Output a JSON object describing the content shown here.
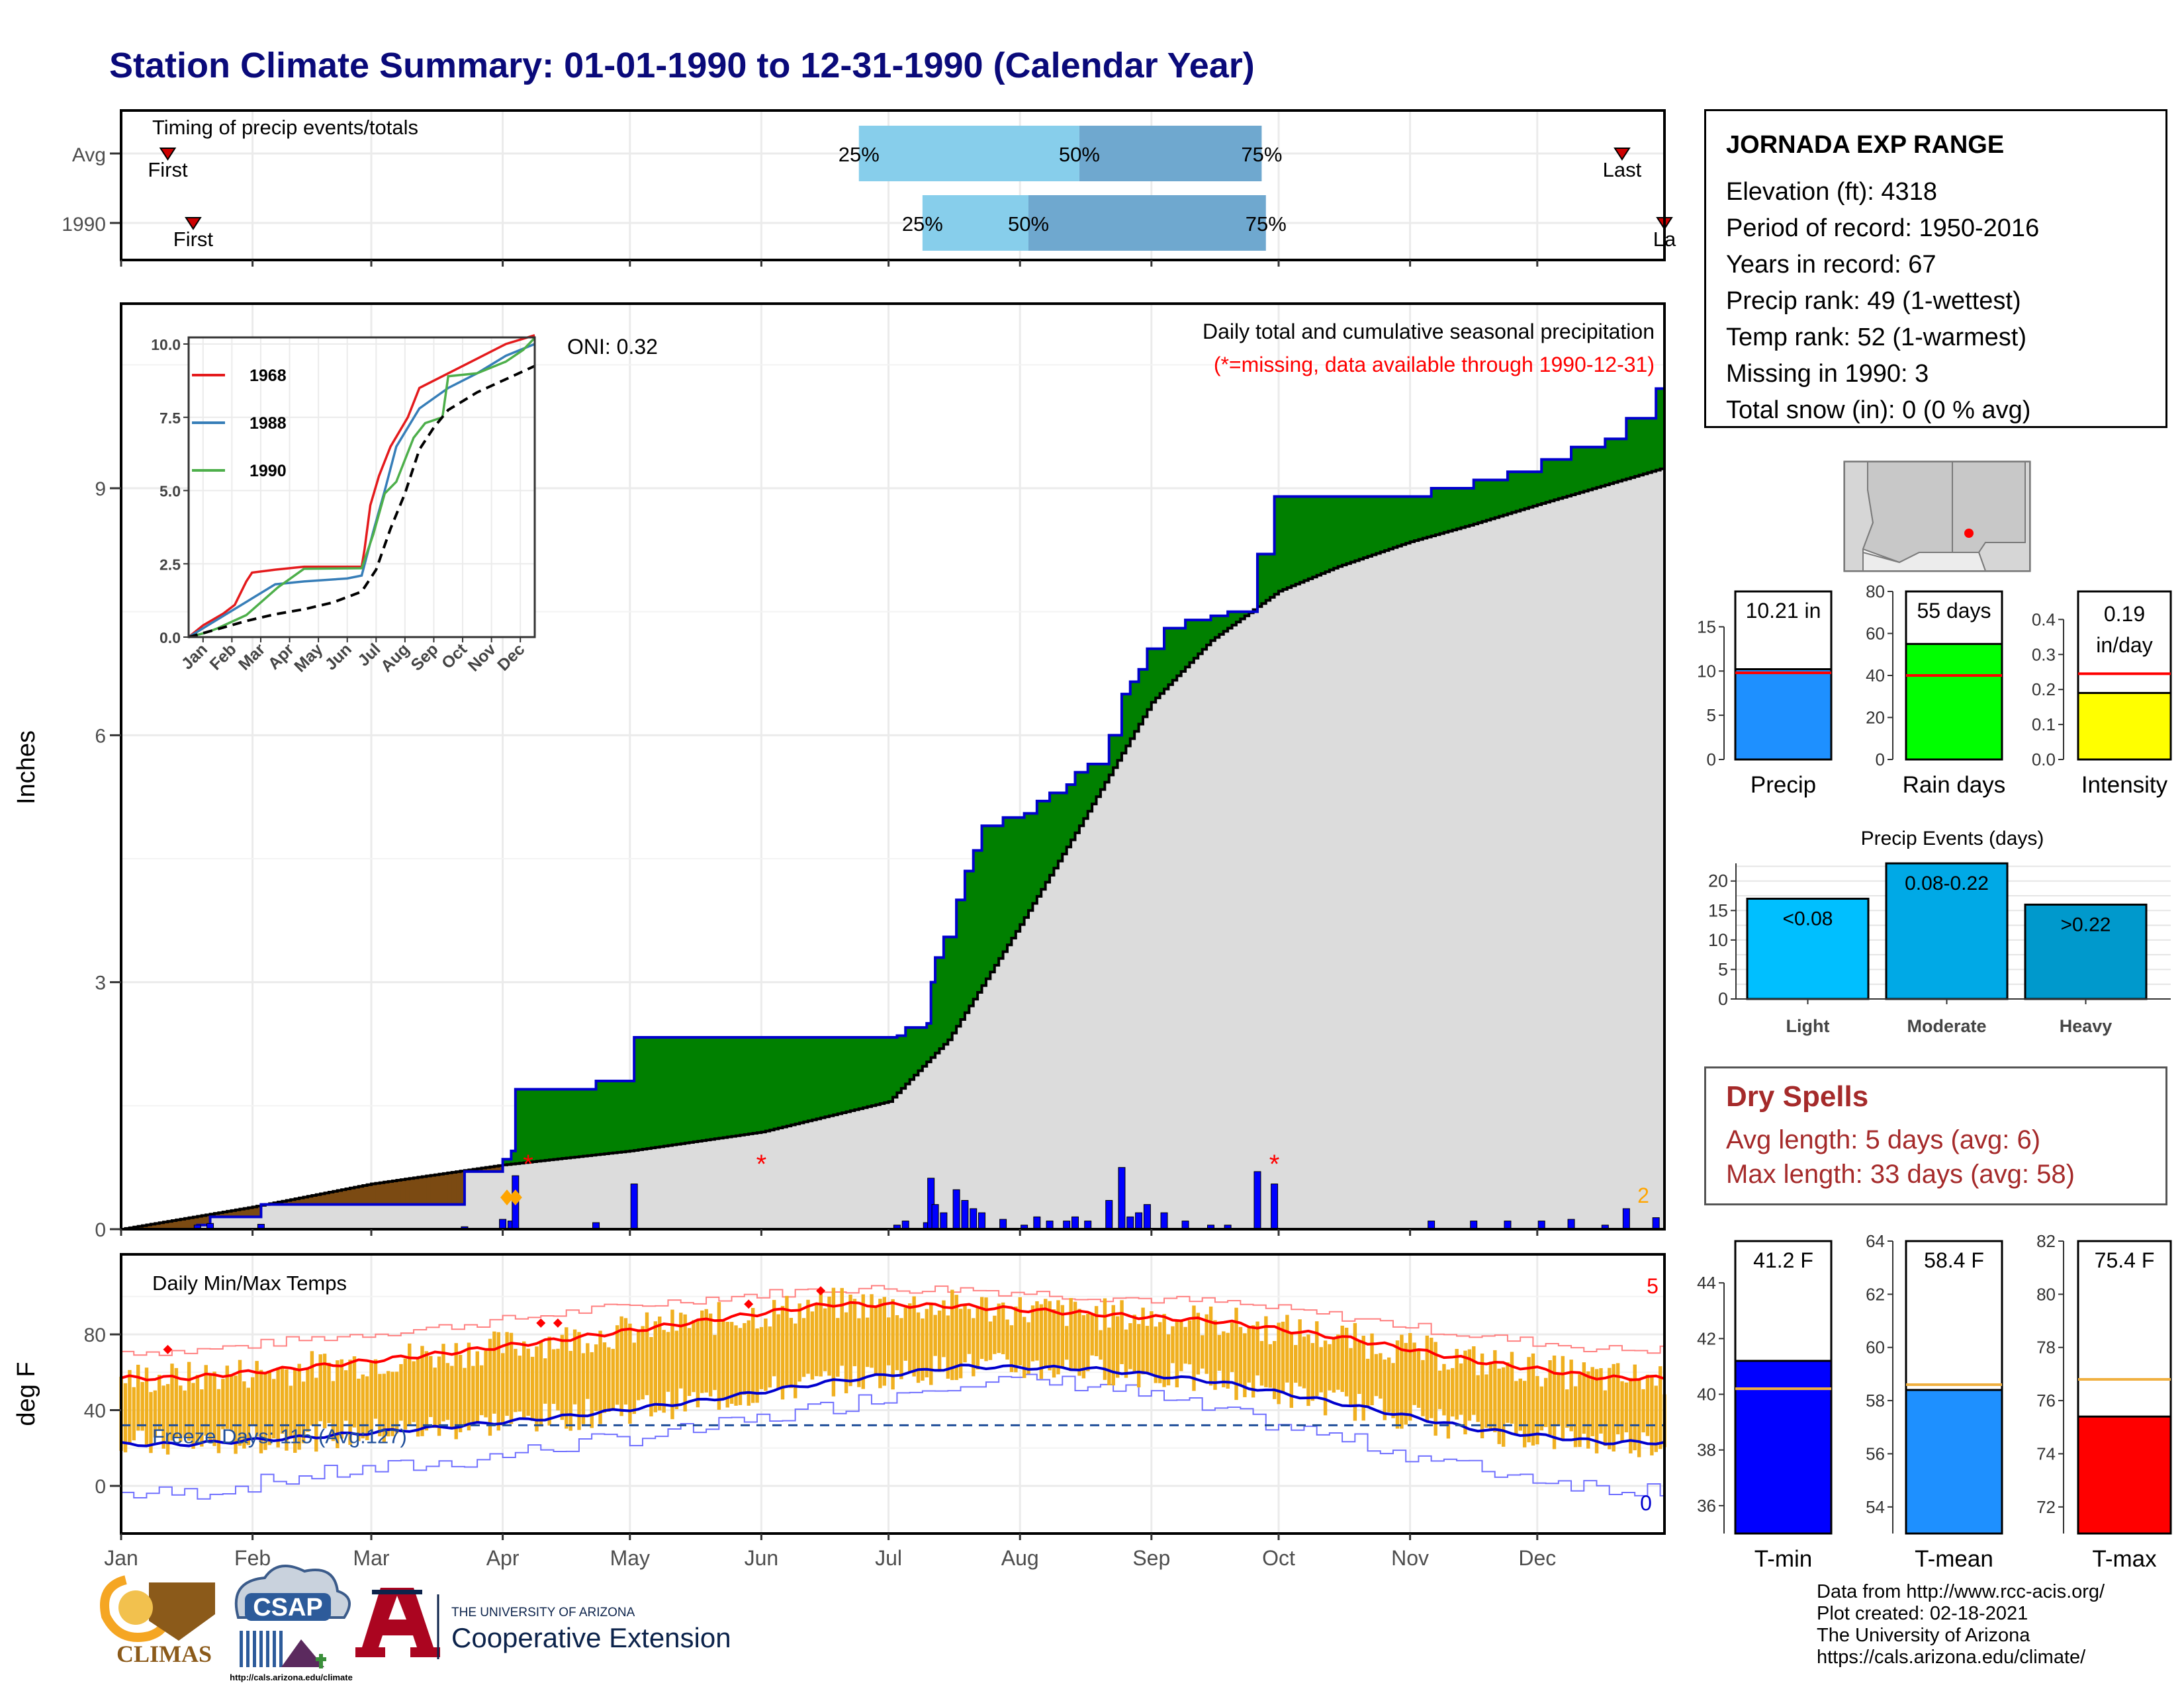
{
  "page_title": "Station Climate Summary: 01-01-1990 to 12-31-1990 (Calendar Year)",
  "info": {
    "station": "JORNADA EXP RANGE",
    "elevation": "Elevation (ft): 4318",
    "period": "Period of record: 1950-2016",
    "years": "Years in record: 67",
    "precip_rank": "Precip rank: 49 (1-wettest)",
    "temp_rank": "Temp rank: 52 (1-warmest)",
    "missing": "Missing in 1990: 3",
    "snow": "Total snow (in): 0 (0 % avg)"
  },
  "dry_spells": {
    "title": "Dry Spells",
    "avg": "Avg length: 5 days (avg: 6)",
    "max": "Max length: 33 days (avg: 58)"
  },
  "credits": {
    "l1": "Data from http://www.rcc-acis.org/",
    "l2": "Plot created: 02-18-2021",
    "l3": "The University of Arizona",
    "l4": "https://cals.arizona.edu/climate/"
  },
  "logos": {
    "climas": "CLIMAS",
    "csap": "CSAP",
    "csap_url": "http://cals.arizona.edu/climate",
    "ua_small": "THE UNIVERSITY OF ARIZONA",
    "ua_big": "Cooperative Extension",
    "ua_letter": "A"
  },
  "colors": {
    "title": "#0a0a7a",
    "above_avg": "#008000",
    "below_avg": "#7b4a12",
    "avg_fill": "#dcdcdc",
    "precip_bar": "#0000ff",
    "tmax": "#ff0000",
    "tmin": "#0000cd",
    "temp_bars": "#f0b020"
  },
  "chart_data": [
    {
      "type": "timeline",
      "title": "Timing of precip events/totals",
      "rows": [
        {
          "label": "Avg",
          "first_date": "1990-01-12",
          "p25": "1990-06-24",
          "p50": "1990-08-15",
          "p75": "1990-09-27",
          "last_date": "1990-12-21",
          "first_label": "First",
          "last_label": "Last"
        },
        {
          "label": "1990",
          "first_date": "1990-01-18",
          "p25": "1990-07-09",
          "p50": "1990-08-03",
          "p75": "1990-09-28",
          "last_date": "1990-12-31",
          "first_label": "First",
          "last_label": "La"
        }
      ],
      "pct_labels": [
        "25%",
        "50%",
        "75%"
      ]
    },
    {
      "type": "area",
      "title": "Daily total and cumulative seasonal precipitation",
      "subtitle": "(*=missing, data available through 1990-12-31)",
      "ylabel": "Inches",
      "ylim": [
        0,
        10.5
      ],
      "yticks": [
        0,
        3,
        6,
        9
      ],
      "oni": "ONI: 0.32",
      "x_months": [
        "Jan",
        "Feb",
        "Mar",
        "Apr",
        "May",
        "Jun",
        "Jul",
        "Aug",
        "Sep",
        "Oct",
        "Nov",
        "Dec"
      ],
      "cumulative_1990": [
        [
          "1990-01-01",
          0.0
        ],
        [
          "1990-01-19",
          0.05
        ],
        [
          "1990-01-22",
          0.15
        ],
        [
          "1990-02-03",
          0.3
        ],
        [
          "1990-03-23",
          0.7
        ],
        [
          "1990-04-01",
          0.85
        ],
        [
          "1990-04-03",
          0.95
        ],
        [
          "1990-04-04",
          1.7
        ],
        [
          "1990-04-23",
          1.8
        ],
        [
          "1990-05-02",
          2.33
        ],
        [
          "1990-07-03",
          2.35
        ],
        [
          "1990-07-05",
          2.45
        ],
        [
          "1990-07-10",
          2.5
        ],
        [
          "1990-07-11",
          3.0
        ],
        [
          "1990-07-12",
          3.3
        ],
        [
          "1990-07-14",
          3.55
        ],
        [
          "1990-07-17",
          4.0
        ],
        [
          "1990-07-19",
          4.35
        ],
        [
          "1990-07-21",
          4.6
        ],
        [
          "1990-07-23",
          4.9
        ],
        [
          "1990-07-28",
          5.0
        ],
        [
          "1990-08-02",
          5.05
        ],
        [
          "1990-08-05",
          5.2
        ],
        [
          "1990-08-08",
          5.3
        ],
        [
          "1990-08-12",
          5.4
        ],
        [
          "1990-08-14",
          5.55
        ],
        [
          "1990-08-17",
          5.65
        ],
        [
          "1990-08-22",
          6.0
        ],
        [
          "1990-08-25",
          6.5
        ],
        [
          "1990-08-27",
          6.65
        ],
        [
          "1990-08-29",
          6.8
        ],
        [
          "1990-08-31",
          7.05
        ],
        [
          "1990-09-04",
          7.3
        ],
        [
          "1990-09-09",
          7.4
        ],
        [
          "1990-09-15",
          7.45
        ],
        [
          "1990-09-19",
          7.5
        ],
        [
          "1990-09-26",
          8.2
        ],
        [
          "1990-09-30",
          8.9
        ],
        [
          "1990-11-06",
          9.0
        ],
        [
          "1990-11-16",
          9.1
        ],
        [
          "1990-11-24",
          9.2
        ],
        [
          "1990-12-02",
          9.35
        ],
        [
          "1990-12-09",
          9.5
        ],
        [
          "1990-12-17",
          9.6
        ],
        [
          "1990-12-22",
          9.85
        ],
        [
          "1990-12-29",
          10.21
        ]
      ],
      "cumulative_avg": [
        [
          "1990-01-01",
          0.0
        ],
        [
          "1990-02-01",
          0.27
        ],
        [
          "1990-03-01",
          0.55
        ],
        [
          "1990-04-01",
          0.78
        ],
        [
          "1990-05-01",
          0.95
        ],
        [
          "1990-06-01",
          1.18
        ],
        [
          "1990-07-01",
          1.55
        ],
        [
          "1990-07-15",
          2.3
        ],
        [
          "1990-08-01",
          3.7
        ],
        [
          "1990-08-15",
          4.9
        ],
        [
          "1990-09-01",
          6.4
        ],
        [
          "1990-09-15",
          7.15
        ],
        [
          "1990-10-01",
          7.75
        ],
        [
          "1990-10-15",
          8.05
        ],
        [
          "1990-11-01",
          8.35
        ],
        [
          "1990-11-15",
          8.55
        ],
        [
          "1990-12-01",
          8.8
        ],
        [
          "1990-12-31",
          9.25
        ]
      ],
      "daily_precip": [
        [
          "1990-01-19",
          0.05
        ],
        [
          "1990-01-22",
          0.07
        ],
        [
          "1990-02-03",
          0.06
        ],
        [
          "1990-03-23",
          0.03
        ],
        [
          "1990-04-01",
          0.12
        ],
        [
          "1990-04-03",
          0.1
        ],
        [
          "1990-04-04",
          0.65
        ],
        [
          "1990-04-23",
          0.08
        ],
        [
          "1990-05-02",
          0.55
        ],
        [
          "1990-07-03",
          0.05
        ],
        [
          "1990-07-05",
          0.1
        ],
        [
          "1990-07-10",
          0.08
        ],
        [
          "1990-07-11",
          0.62
        ],
        [
          "1990-07-12",
          0.3
        ],
        [
          "1990-07-14",
          0.2
        ],
        [
          "1990-07-17",
          0.48
        ],
        [
          "1990-07-19",
          0.35
        ],
        [
          "1990-07-21",
          0.25
        ],
        [
          "1990-07-23",
          0.2
        ],
        [
          "1990-07-28",
          0.12
        ],
        [
          "1990-08-02",
          0.05
        ],
        [
          "1990-08-05",
          0.15
        ],
        [
          "1990-08-08",
          0.1
        ],
        [
          "1990-08-12",
          0.1
        ],
        [
          "1990-08-14",
          0.15
        ],
        [
          "1990-08-17",
          0.1
        ],
        [
          "1990-08-22",
          0.35
        ],
        [
          "1990-08-25",
          0.75
        ],
        [
          "1990-08-27",
          0.15
        ],
        [
          "1990-08-29",
          0.2
        ],
        [
          "1990-08-31",
          0.3
        ],
        [
          "1990-09-04",
          0.2
        ],
        [
          "1990-09-09",
          0.1
        ],
        [
          "1990-09-15",
          0.05
        ],
        [
          "1990-09-19",
          0.05
        ],
        [
          "1990-09-26",
          0.7
        ],
        [
          "1990-09-30",
          0.55
        ],
        [
          "1990-11-06",
          0.1
        ],
        [
          "1990-11-16",
          0.1
        ],
        [
          "1990-11-24",
          0.1
        ],
        [
          "1990-12-02",
          0.1
        ],
        [
          "1990-12-09",
          0.12
        ],
        [
          "1990-12-17",
          0.05
        ],
        [
          "1990-12-22",
          0.25
        ],
        [
          "1990-12-29",
          0.14
        ]
      ],
      "missing_days": [
        "1990-04-07",
        "1990-06-01",
        "1990-09-30"
      ],
      "snow_markers": [
        "1990-04-02",
        "1990-04-04"
      ],
      "snow_total_label": "2"
    },
    {
      "type": "line",
      "title": "inset cumulative precipitation",
      "series": [
        {
          "name": "1968",
          "color": "#e41a1c",
          "points": [
            [
              0,
              0
            ],
            [
              0.5,
              0.4
            ],
            [
              1.2,
              0.8
            ],
            [
              1.6,
              1.1
            ],
            [
              2.0,
              1.9
            ],
            [
              2.2,
              2.2
            ],
            [
              3.0,
              2.3
            ],
            [
              4.0,
              2.4
            ],
            [
              6.0,
              2.4
            ],
            [
              6.1,
              3.0
            ],
            [
              6.3,
              4.5
            ],
            [
              6.6,
              5.5
            ],
            [
              7.0,
              6.5
            ],
            [
              7.6,
              7.5
            ],
            [
              8.0,
              8.5
            ],
            [
              9.0,
              9.0
            ],
            [
              10.0,
              9.5
            ],
            [
              11.0,
              10.0
            ],
            [
              12,
              10.3
            ]
          ]
        },
        {
          "name": "1988",
          "color": "#377eb8",
          "points": [
            [
              0,
              0
            ],
            [
              1.0,
              0.6
            ],
            [
              1.5,
              0.9
            ],
            [
              2.0,
              1.2
            ],
            [
              3.0,
              1.8
            ],
            [
              4.0,
              1.9
            ],
            [
              5.5,
              2.0
            ],
            [
              6.0,
              2.1
            ],
            [
              6.4,
              3.6
            ],
            [
              6.8,
              5.0
            ],
            [
              7.2,
              6.5
            ],
            [
              8.0,
              7.8
            ],
            [
              9.0,
              8.5
            ],
            [
              10.0,
              9.0
            ],
            [
              11.0,
              9.6
            ],
            [
              12,
              10.0
            ]
          ]
        },
        {
          "name": "1990",
          "color": "#4daf4a",
          "points": [
            [
              0,
              0
            ],
            [
              0.6,
              0.15
            ],
            [
              1.0,
              0.3
            ],
            [
              2.0,
              0.75
            ],
            [
              3.1,
              1.7
            ],
            [
              4.0,
              2.33
            ],
            [
              6.0,
              2.35
            ],
            [
              6.4,
              3.5
            ],
            [
              6.8,
              4.9
            ],
            [
              7.2,
              5.3
            ],
            [
              7.8,
              6.8
            ],
            [
              8.2,
              7.3
            ],
            [
              8.8,
              7.5
            ],
            [
              9.0,
              8.9
            ],
            [
              10.0,
              9.0
            ],
            [
              11.0,
              9.4
            ],
            [
              11.6,
              9.8
            ],
            [
              12,
              10.21
            ]
          ]
        },
        {
          "name": "avg",
          "color": "#000000",
          "dashed": true,
          "points": [
            [
              0,
              0
            ],
            [
              1,
              0.27
            ],
            [
              2,
              0.55
            ],
            [
              3,
              0.78
            ],
            [
              4,
              0.95
            ],
            [
              5,
              1.18
            ],
            [
              6,
              1.55
            ],
            [
              6.5,
              2.3
            ],
            [
              7,
              3.7
            ],
            [
              7.5,
              4.9
            ],
            [
              8,
              6.4
            ],
            [
              8.5,
              7.15
            ],
            [
              9,
              7.75
            ],
            [
              10,
              8.35
            ],
            [
              11,
              8.8
            ],
            [
              12,
              9.25
            ]
          ]
        }
      ],
      "ylim": [
        0,
        10
      ],
      "yticks": [
        "0.0",
        "2.5",
        "5.0",
        "7.5",
        "10.0"
      ],
      "x_months": [
        "Jan",
        "Feb",
        "Mar",
        "Apr",
        "May",
        "Jun",
        "Jul",
        "Aug",
        "Sep",
        "Oct",
        "Nov",
        "Dec"
      ]
    },
    {
      "type": "bar",
      "title": "Daily Min/Max Temps",
      "ylabel": "deg F",
      "ylim": [
        -15,
        105
      ],
      "yticks": [
        0,
        40,
        80
      ],
      "freeze_label": "Freeze Days: 115 (Avg:127)",
      "freeze_line": 32,
      "record_high_count": "5",
      "record_low_count": "0",
      "avg_tmax_monthly": [
        57,
        63,
        70,
        78,
        87,
        96,
        95,
        91,
        87,
        78,
        66,
        57
      ],
      "avg_tmin_monthly": [
        22,
        26,
        31,
        37,
        45,
        55,
        63,
        62,
        55,
        43,
        30,
        23
      ],
      "rec_max_monthly": [
        75,
        82,
        88,
        96,
        103,
        108,
        108,
        104,
        101,
        93,
        83,
        76
      ],
      "rec_min_monthly": [
        -8,
        2,
        8,
        18,
        26,
        38,
        52,
        50,
        35,
        20,
        5,
        -5
      ],
      "x_months": [
        "Jan",
        "Feb",
        "Mar",
        "Apr",
        "May",
        "Jun",
        "Jul",
        "Aug",
        "Sep",
        "Oct",
        "Nov",
        "Dec"
      ]
    },
    {
      "type": "bar",
      "title": "Precip",
      "values": [
        10.21
      ],
      "avg": 9.8,
      "label": "10.21 in",
      "ylim": [
        0,
        19
      ],
      "yticks": [
        0,
        5,
        10,
        15
      ],
      "color": "#1e90ff"
    },
    {
      "type": "bar",
      "title": "Rain days",
      "values": [
        55
      ],
      "avg": 40,
      "label": "55 days",
      "ylim": [
        0,
        80
      ],
      "yticks": [
        0,
        20,
        40,
        60,
        80
      ],
      "color": "#00ff00"
    },
    {
      "type": "bar",
      "title": "Intensity",
      "values": [
        0.19
      ],
      "avg": 0.245,
      "label": "0.19\nin/day",
      "label_l1": "0.19",
      "label_l2": "in/day",
      "ylim": [
        0,
        0.48
      ],
      "yticks": [
        "0.0",
        "0.1",
        "0.2",
        "0.3",
        "0.4"
      ],
      "color": "#ffff00"
    },
    {
      "type": "bar",
      "title": "Precip Events (days)",
      "categories": [
        "Light",
        "Moderate",
        "Heavy"
      ],
      "values": [
        17,
        23,
        16
      ],
      "labels": [
        "<0.08",
        "0.08-0.22",
        ">0.22"
      ],
      "ylim": [
        0,
        23
      ],
      "yticks": [
        0,
        5,
        10,
        15,
        20
      ],
      "colors": [
        "#00bfff",
        "#00a9e6",
        "#0099cc"
      ]
    },
    {
      "type": "bar",
      "title": "T-min",
      "values": [
        41.2
      ],
      "avg": 40.2,
      "label": "41.2 F",
      "ylim": [
        35,
        45.5
      ],
      "yticks": [
        36,
        38,
        40,
        42,
        44
      ],
      "color": "#0000ff"
    },
    {
      "type": "bar",
      "title": "T-mean",
      "values": [
        58.4
      ],
      "avg": 58.6,
      "label": "58.4 F",
      "ylim": [
        53,
        64
      ],
      "yticks": [
        54,
        56,
        58,
        60,
        62,
        64
      ],
      "color": "#1e90ff"
    },
    {
      "type": "bar",
      "title": "T-max",
      "values": [
        75.4
      ],
      "avg": 76.8,
      "label": "75.4 F",
      "ylim": [
        71,
        82
      ],
      "yticks": [
        72,
        74,
        76,
        78,
        80,
        82
      ],
      "color": "#ff0000"
    }
  ]
}
